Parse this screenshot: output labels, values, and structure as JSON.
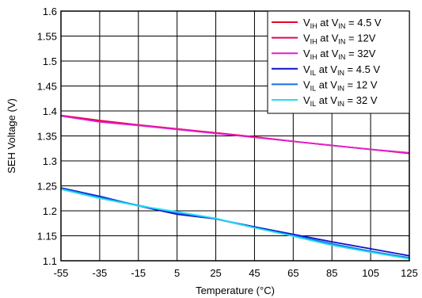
{
  "chart_data": {
    "type": "line",
    "title": "",
    "xlabel": "Temperature (°C)",
    "ylabel": "SEH Voltage (V)",
    "xlim": [
      -55,
      125
    ],
    "ylim": [
      1.1,
      1.6
    ],
    "x_ticks": [
      "-55",
      "-35",
      "-15",
      "5",
      "25",
      "45",
      "65",
      "85",
      "105",
      "125"
    ],
    "y_ticks": [
      "1.1",
      "1.15",
      "1.2",
      "1.25",
      "1.3",
      "1.35",
      "1.4",
      "1.45",
      "1.5",
      "1.55",
      "1.6"
    ],
    "grid": true,
    "legend_position": "top-right",
    "series": [
      {
        "name": "VIH at VIN = 4.5 V",
        "legend": {
          "a": "V",
          "a_sub": "IH",
          "b": " at V",
          "b_sub": "IN",
          "c": " = 4.5 V"
        },
        "color": "#e8002a",
        "x": [
          -55,
          -35,
          -15,
          5,
          25,
          45,
          65,
          85,
          105,
          125
        ],
        "y": [
          1.391,
          1.381,
          1.372,
          1.364,
          1.356,
          1.348,
          1.339,
          1.331,
          1.323,
          1.315
        ]
      },
      {
        "name": "VIH at VIN = 12V",
        "legend": {
          "a": "V",
          "a_sub": "IH",
          "b": " at V",
          "b_sub": "IN",
          "c": " = 12V"
        },
        "color": "#e8005e",
        "x": [
          -55,
          -35,
          -15,
          5,
          25,
          45,
          65,
          85,
          105,
          125
        ],
        "y": [
          1.39,
          1.38,
          1.372,
          1.364,
          1.356,
          1.348,
          1.339,
          1.331,
          1.323,
          1.316
        ]
      },
      {
        "name": "VIH at VIN = 32V",
        "legend": {
          "a": "V",
          "a_sub": "IH",
          "b": " at V",
          "b_sub": "IN",
          "c": " = 32V"
        },
        "color": "#e020d0",
        "x": [
          -55,
          -35,
          -15,
          5,
          25,
          45,
          65,
          85,
          105,
          125
        ],
        "y": [
          1.39,
          1.378,
          1.371,
          1.363,
          1.355,
          1.347,
          1.339,
          1.331,
          1.323,
          1.316
        ]
      },
      {
        "name": "VIL at VIN = 4.5 V",
        "legend": {
          "a": "V",
          "a_sub": "IL",
          "b": " at V",
          "b_sub": "IN",
          "c": " = 4.5 V"
        },
        "color": "#1010c8",
        "x": [
          -55,
          -35,
          -15,
          5,
          25,
          45,
          65,
          85,
          105,
          125
        ],
        "y": [
          1.246,
          1.229,
          1.21,
          1.193,
          1.184,
          1.168,
          1.153,
          1.138,
          1.124,
          1.11
        ]
      },
      {
        "name": "VIL at VIN = 12 V",
        "legend": {
          "a": "V",
          "a_sub": "IL",
          "b": " at V",
          "b_sub": "IN",
          "c": " = 12 V"
        },
        "color": "#1a6ee8",
        "x": [
          -55,
          -35,
          -15,
          5,
          25,
          45,
          65,
          85,
          105,
          125
        ],
        "y": [
          1.245,
          1.227,
          1.211,
          1.196,
          1.184,
          1.166,
          1.151,
          1.134,
          1.119,
          1.106
        ]
      },
      {
        "name": "VIL at VIN = 32 V",
        "legend": {
          "a": "V",
          "a_sub": "IL",
          "b": " at V",
          "b_sub": "IN",
          "c": " = 32 V"
        },
        "color": "#20e0f0",
        "x": [
          -55,
          -35,
          -15,
          5,
          25,
          45,
          65,
          85,
          105,
          125
        ],
        "y": [
          1.243,
          1.225,
          1.21,
          1.198,
          1.185,
          1.166,
          1.149,
          1.131,
          1.117,
          1.104
        ]
      }
    ]
  }
}
